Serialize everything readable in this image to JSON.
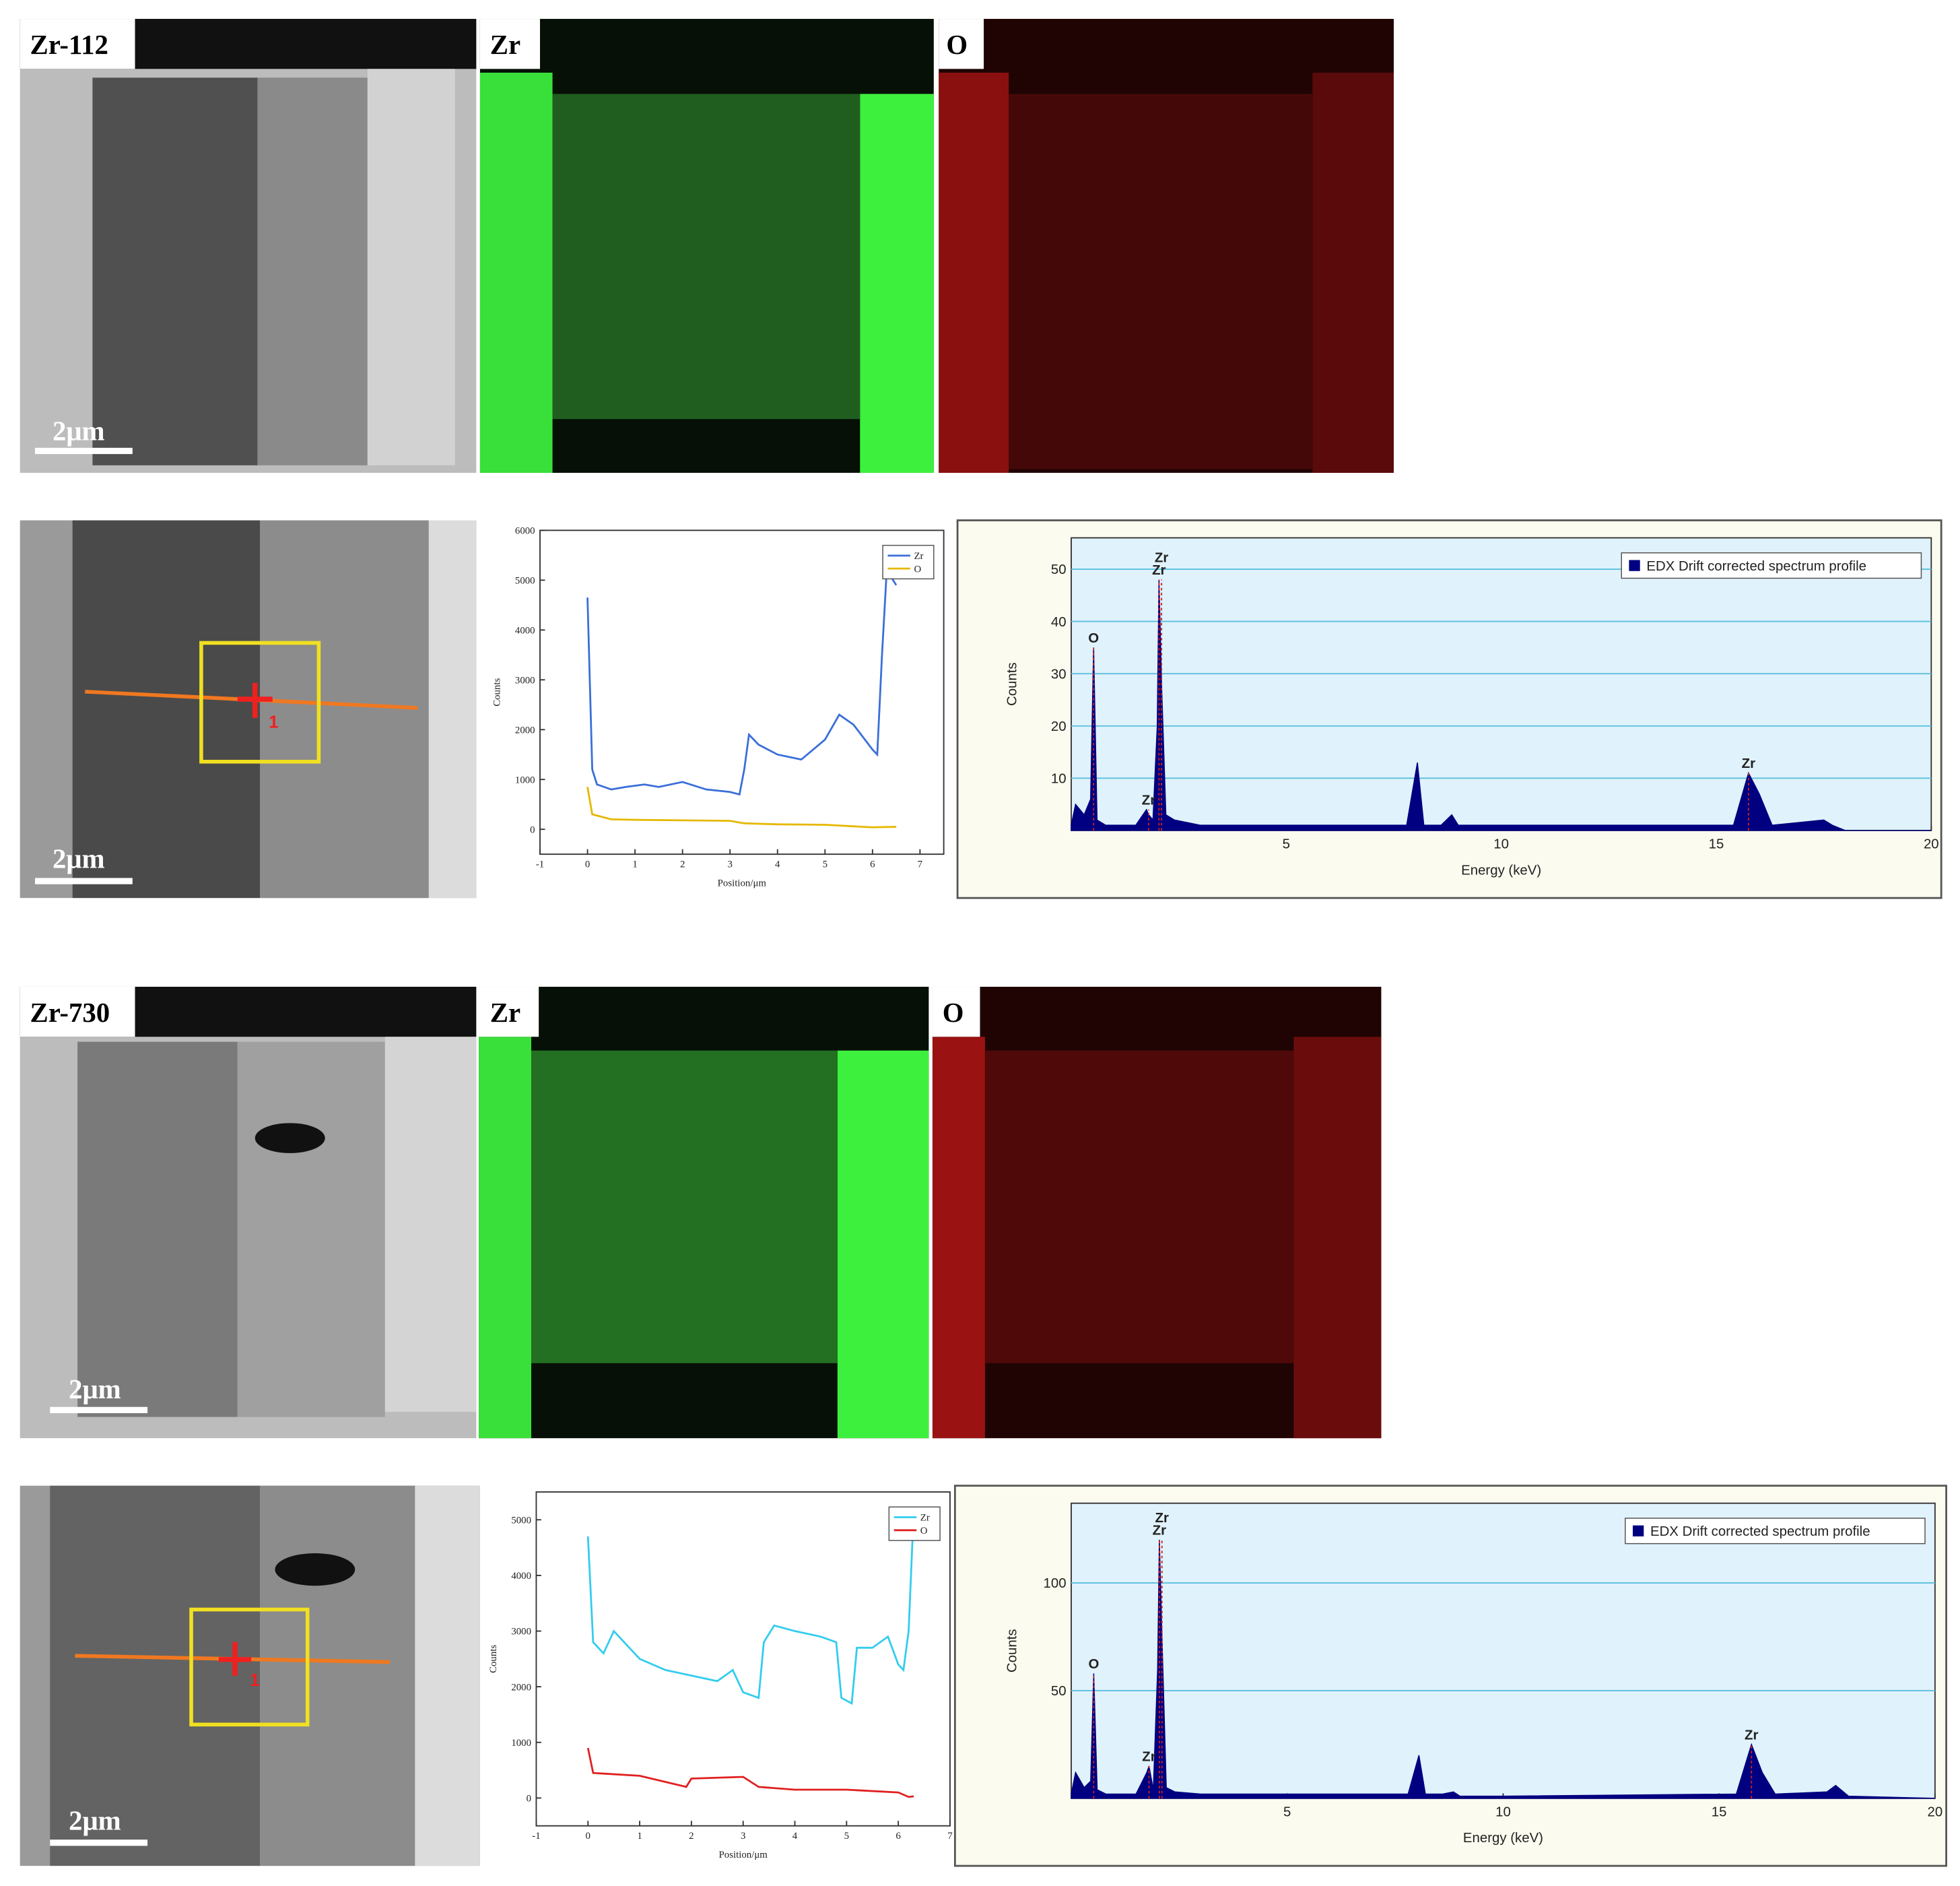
{
  "figure": {
    "sample_labels": [
      "Zr-112",
      "Zr-730"
    ],
    "map_labels": [
      "Zr",
      "O",
      "Zr",
      "O"
    ],
    "scale_bars": [
      "2μm",
      "2μm",
      "2μm",
      "2μm"
    ],
    "point_labels": [
      "1",
      "1"
    ]
  },
  "chart_data": [
    {
      "type": "line",
      "x_label": "Position/μm",
      "y_label": "Counts",
      "xlim": [
        -1,
        7.5
      ],
      "xticks": [
        -1,
        0,
        1,
        2,
        3,
        4,
        5,
        6,
        7
      ],
      "ylim": [
        -500,
        6000
      ],
      "yticks": [
        0,
        1000,
        2000,
        3000,
        4000,
        5000,
        6000
      ],
      "legend": "upper right",
      "series": [
        {
          "name": "Zr",
          "color": "#3a6fd8",
          "x": [
            0,
            0.1,
            0.2,
            0.5,
            0.8,
            1.2,
            1.5,
            2,
            2.5,
            3,
            3.2,
            3.3,
            3.4,
            3.6,
            4,
            4.5,
            5,
            5.3,
            5.6,
            6,
            6.1,
            6.2,
            6.3,
            6.5
          ],
          "values": [
            4650,
            1200,
            900,
            800,
            850,
            900,
            850,
            950,
            800,
            750,
            700,
            1200,
            1900,
            1700,
            1500,
            1400,
            1800,
            2300,
            2100,
            1600,
            1500,
            3500,
            5200,
            4900
          ]
        },
        {
          "name": "O",
          "color": "#e6b800",
          "x": [
            0,
            0.1,
            0.5,
            1,
            2,
            3,
            3.3,
            4,
            5,
            6,
            6.5
          ],
          "values": [
            850,
            300,
            200,
            190,
            180,
            170,
            120,
            100,
            90,
            40,
            50
          ]
        }
      ]
    },
    {
      "type": "area",
      "x_label": "Energy (keV)",
      "y_label": "Counts",
      "xlim": [
        0,
        20
      ],
      "xticks": [
        5,
        10,
        15,
        20
      ],
      "ylim": [
        0,
        56
      ],
      "yticks": [
        10,
        20,
        30,
        40,
        50
      ],
      "grid": true,
      "plot_color": "#e0f2fb",
      "legend": "upper right",
      "series": [
        {
          "name": "EDX Drift corrected spectrum profile",
          "color": "#000080",
          "x": [
            0,
            0.1,
            0.3,
            0.45,
            0.52,
            0.6,
            0.8,
            1.5,
            1.75,
            1.8,
            1.9,
            2.0,
            2.04,
            2.1,
            2.2,
            2.4,
            3,
            5,
            7.8,
            8.05,
            8.2,
            8.6,
            8.85,
            9.0,
            10,
            15.4,
            15.75,
            16.0,
            16.3,
            17.5,
            17.7,
            18,
            20
          ],
          "values": [
            1,
            5,
            3,
            6,
            35,
            2,
            1,
            1,
            4,
            3,
            2,
            20,
            48,
            28,
            3,
            2,
            1,
            1,
            1,
            13,
            1,
            1,
            3,
            1,
            1,
            1,
            11,
            7,
            1,
            2,
            1,
            0,
            0
          ]
        }
      ],
      "peak_labels": [
        {
          "text": "O",
          "x": 0.52
        },
        {
          "text": "Zr",
          "x": 1.8
        },
        {
          "text": "Zr",
          "x": 2.04
        },
        {
          "text": "Zr",
          "x": 2.1
        },
        {
          "text": "Zr",
          "x": 15.75
        }
      ]
    },
    {
      "type": "line",
      "x_label": "Position/μm",
      "y_label": "Counts",
      "xlim": [
        -1,
        7
      ],
      "xticks": [
        -1,
        0,
        1,
        2,
        3,
        4,
        5,
        6,
        7
      ],
      "ylim": [
        -500,
        5500
      ],
      "yticks": [
        0,
        1000,
        2000,
        3000,
        4000,
        5000
      ],
      "legend": "upper right",
      "series": [
        {
          "name": "Zr",
          "color": "#33ccee",
          "x": [
            0,
            0.1,
            0.3,
            0.5,
            1,
            1.5,
            2,
            2.5,
            2.8,
            3,
            3.3,
            3.4,
            3.6,
            4,
            4.5,
            4.8,
            4.9,
            5.1,
            5.2,
            5.5,
            5.8,
            6,
            6.1,
            6.2,
            6.3
          ],
          "values": [
            4700,
            2800,
            2600,
            3000,
            2500,
            2300,
            2200,
            2100,
            2300,
            1900,
            1800,
            2800,
            3100,
            3000,
            2900,
            2800,
            1800,
            1700,
            2700,
            2700,
            2900,
            2400,
            2300,
            3000,
            5200
          ]
        },
        {
          "name": "O",
          "color": "#e02020",
          "x": [
            0,
            0.1,
            1,
            1.9,
            2,
            3,
            3.3,
            4,
            5,
            6,
            6.2,
            6.3
          ],
          "values": [
            900,
            450,
            400,
            200,
            350,
            380,
            200,
            150,
            150,
            100,
            20,
            30
          ]
        }
      ]
    },
    {
      "type": "area",
      "x_label": "Energy (keV)",
      "y_label": "Counts",
      "xlim": [
        0,
        20
      ],
      "xticks": [
        5,
        10,
        15,
        20
      ],
      "ylim": [
        0,
        137
      ],
      "yticks": [
        50,
        100
      ],
      "grid": true,
      "plot_color": "#e0f2fb",
      "legend": "upper right",
      "series": [
        {
          "name": "EDX Drift corrected spectrum profile",
          "color": "#000080",
          "x": [
            0,
            0.1,
            0.3,
            0.45,
            0.52,
            0.6,
            0.8,
            1.5,
            1.75,
            1.8,
            1.9,
            2.0,
            2.04,
            2.1,
            2.2,
            2.4,
            3,
            5,
            7.8,
            8.05,
            8.2,
            8.6,
            8.85,
            9.0,
            10,
            15.4,
            15.75,
            16.0,
            16.3,
            17.5,
            17.7,
            18,
            20
          ],
          "values": [
            2,
            12,
            5,
            8,
            58,
            4,
            2,
            2,
            12,
            15,
            4,
            60,
            120,
            75,
            5,
            3,
            2,
            2,
            2,
            20,
            2,
            2,
            3,
            1,
            1,
            2,
            25,
            12,
            2,
            3,
            6,
            1,
            0
          ]
        }
      ],
      "peak_labels": [
        {
          "text": "O",
          "x": 0.52
        },
        {
          "text": "Zr",
          "x": 1.8
        },
        {
          "text": "Zr",
          "x": 2.04
        },
        {
          "text": "Zr",
          "x": 2.1
        },
        {
          "text": "Zr",
          "x": 15.75
        }
      ]
    }
  ]
}
